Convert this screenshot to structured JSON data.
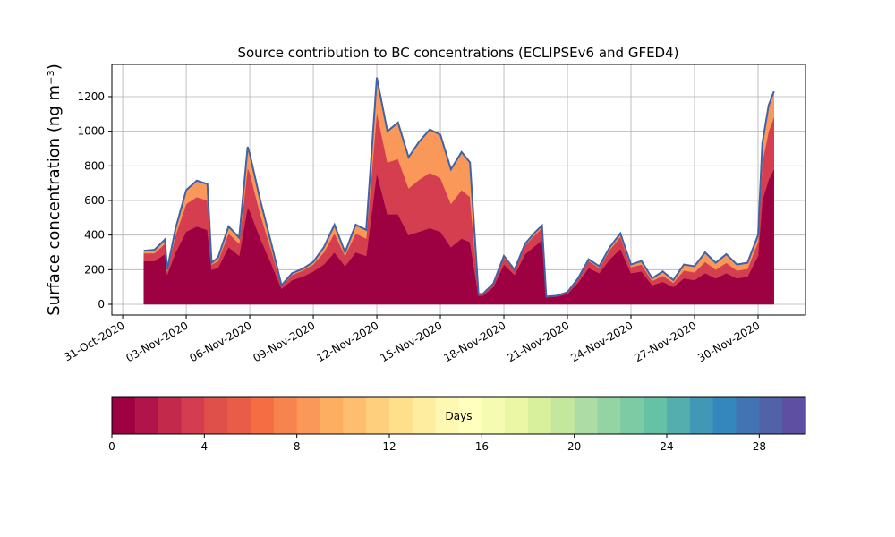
{
  "chart_data": {
    "type": "stacked_area",
    "title": "Source contribution to BC concentrations (ECLIPSEv6 and GFED4)",
    "y_label": "Surface concentration (ng m⁻³)",
    "x": [
      1.0,
      1.5,
      2.0,
      2.1,
      2.5,
      3.0,
      3.5,
      4.0,
      4.2,
      4.5,
      5.0,
      5.5,
      5.9,
      6.0,
      6.5,
      7.0,
      7.5,
      8.0,
      8.5,
      9.0,
      9.5,
      10.0,
      10.5,
      11.0,
      11.5,
      12.0,
      12.5,
      13.0,
      13.5,
      14.0,
      14.5,
      15.0,
      15.5,
      16.0,
      16.4,
      16.8,
      17.0,
      17.5,
      18.0,
      18.5,
      19.0,
      19.5,
      19.8,
      20.0,
      20.5,
      21.0,
      21.5,
      22.0,
      22.5,
      23.0,
      23.5,
      24.0,
      24.5,
      25.0,
      25.5,
      26.0,
      26.5,
      27.0,
      27.5,
      28.0,
      28.5,
      29.0,
      29.5,
      30.0,
      30.2,
      30.5,
      30.75
    ],
    "series": [
      {
        "color": "#9e0142",
        "values": [
          250,
          250,
          290,
          170,
          300,
          420,
          450,
          430,
          200,
          210,
          330,
          280,
          560,
          540,
          380,
          240,
          90,
          140,
          160,
          190,
          230,
          300,
          220,
          300,
          280,
          760,
          520,
          520,
          400,
          420,
          440,
          420,
          330,
          380,
          360,
          50,
          50,
          100,
          230,
          170,
          290,
          340,
          370,
          40,
          45,
          60,
          125,
          210,
          180,
          260,
          320,
          180,
          190,
          110,
          130,
          100,
          150,
          140,
          180,
          150,
          180,
          150,
          160,
          280,
          600,
          720,
          780
        ]
      },
      {
        "color": "#d53e4f",
        "values": [
          45,
          45,
          60,
          20,
          100,
          160,
          170,
          170,
          30,
          40,
          80,
          70,
          230,
          220,
          140,
          80,
          15,
          30,
          35,
          40,
          70,
          110,
          60,
          110,
          100,
          350,
          300,
          320,
          270,
          300,
          320,
          310,
          250,
          280,
          260,
          8,
          8,
          15,
          40,
          25,
          50,
          65,
          70,
          4,
          4,
          8,
          20,
          40,
          30,
          55,
          70,
          35,
          40,
          25,
          35,
          25,
          45,
          45,
          65,
          50,
          60,
          45,
          45,
          80,
          220,
          280,
          300
        ]
      },
      {
        "color": "#f99858",
        "values": [
          15,
          20,
          25,
          10,
          40,
          80,
          95,
          95,
          10,
          20,
          40,
          35,
          120,
          110,
          80,
          40,
          5,
          10,
          10,
          15,
          30,
          50,
          20,
          50,
          50,
          200,
          180,
          210,
          180,
          220,
          250,
          250,
          200,
          220,
          200,
          2,
          2,
          5,
          10,
          5,
          10,
          15,
          15,
          1,
          1,
          2,
          5,
          10,
          10,
          15,
          20,
          15,
          20,
          15,
          25,
          15,
          35,
          35,
          55,
          40,
          50,
          35,
          35,
          40,
          110,
          150,
          150
        ]
      }
    ],
    "line_color": "#4062a6",
    "xlim": [
      -0.51,
      32.24
    ],
    "xticks": [
      {
        "value": 0,
        "label": "31-Oct-2020"
      },
      {
        "value": 3,
        "label": "03-Nov-2020"
      },
      {
        "value": 6,
        "label": "06-Nov-2020"
      },
      {
        "value": 9,
        "label": "09-Nov-2020"
      },
      {
        "value": 12,
        "label": "12-Nov-2020"
      },
      {
        "value": 15,
        "label": "15-Nov-2020"
      },
      {
        "value": 18,
        "label": "18-Nov-2020"
      },
      {
        "value": 21,
        "label": "21-Nov-2020"
      },
      {
        "value": 24,
        "label": "24-Nov-2020"
      },
      {
        "value": 27,
        "label": "27-Nov-2020"
      },
      {
        "value": 30,
        "label": "30-Nov-2020"
      }
    ],
    "ylim": [
      -62,
      1386
    ],
    "yticks": [
      0,
      200,
      400,
      600,
      800,
      1000,
      1200
    ],
    "grid": true,
    "colorbar": {
      "label": "Days",
      "lim": [
        0,
        30
      ],
      "ticks": [
        0,
        4,
        8,
        12,
        16,
        20,
        24,
        28
      ],
      "colors": [
        "#9e0142",
        "#b0144a",
        "#c2294a",
        "#d43d4f",
        "#e0504a",
        "#e95c47",
        "#f46d43",
        "#f7844e",
        "#f99858",
        "#fdae61",
        "#fdbf6f",
        "#fed07e",
        "#fee08b",
        "#feec9f",
        "#fff8b3",
        "#ffffbe",
        "#f6fbb2",
        "#ebf7a4",
        "#d8ef9b",
        "#c4e79e",
        "#abdda4",
        "#94d4a4",
        "#7ccba5",
        "#66c2a5",
        "#54aead",
        "#4198b6",
        "#3288bd",
        "#4273b3",
        "#5262a8",
        "#5e4fa2"
      ]
    }
  }
}
